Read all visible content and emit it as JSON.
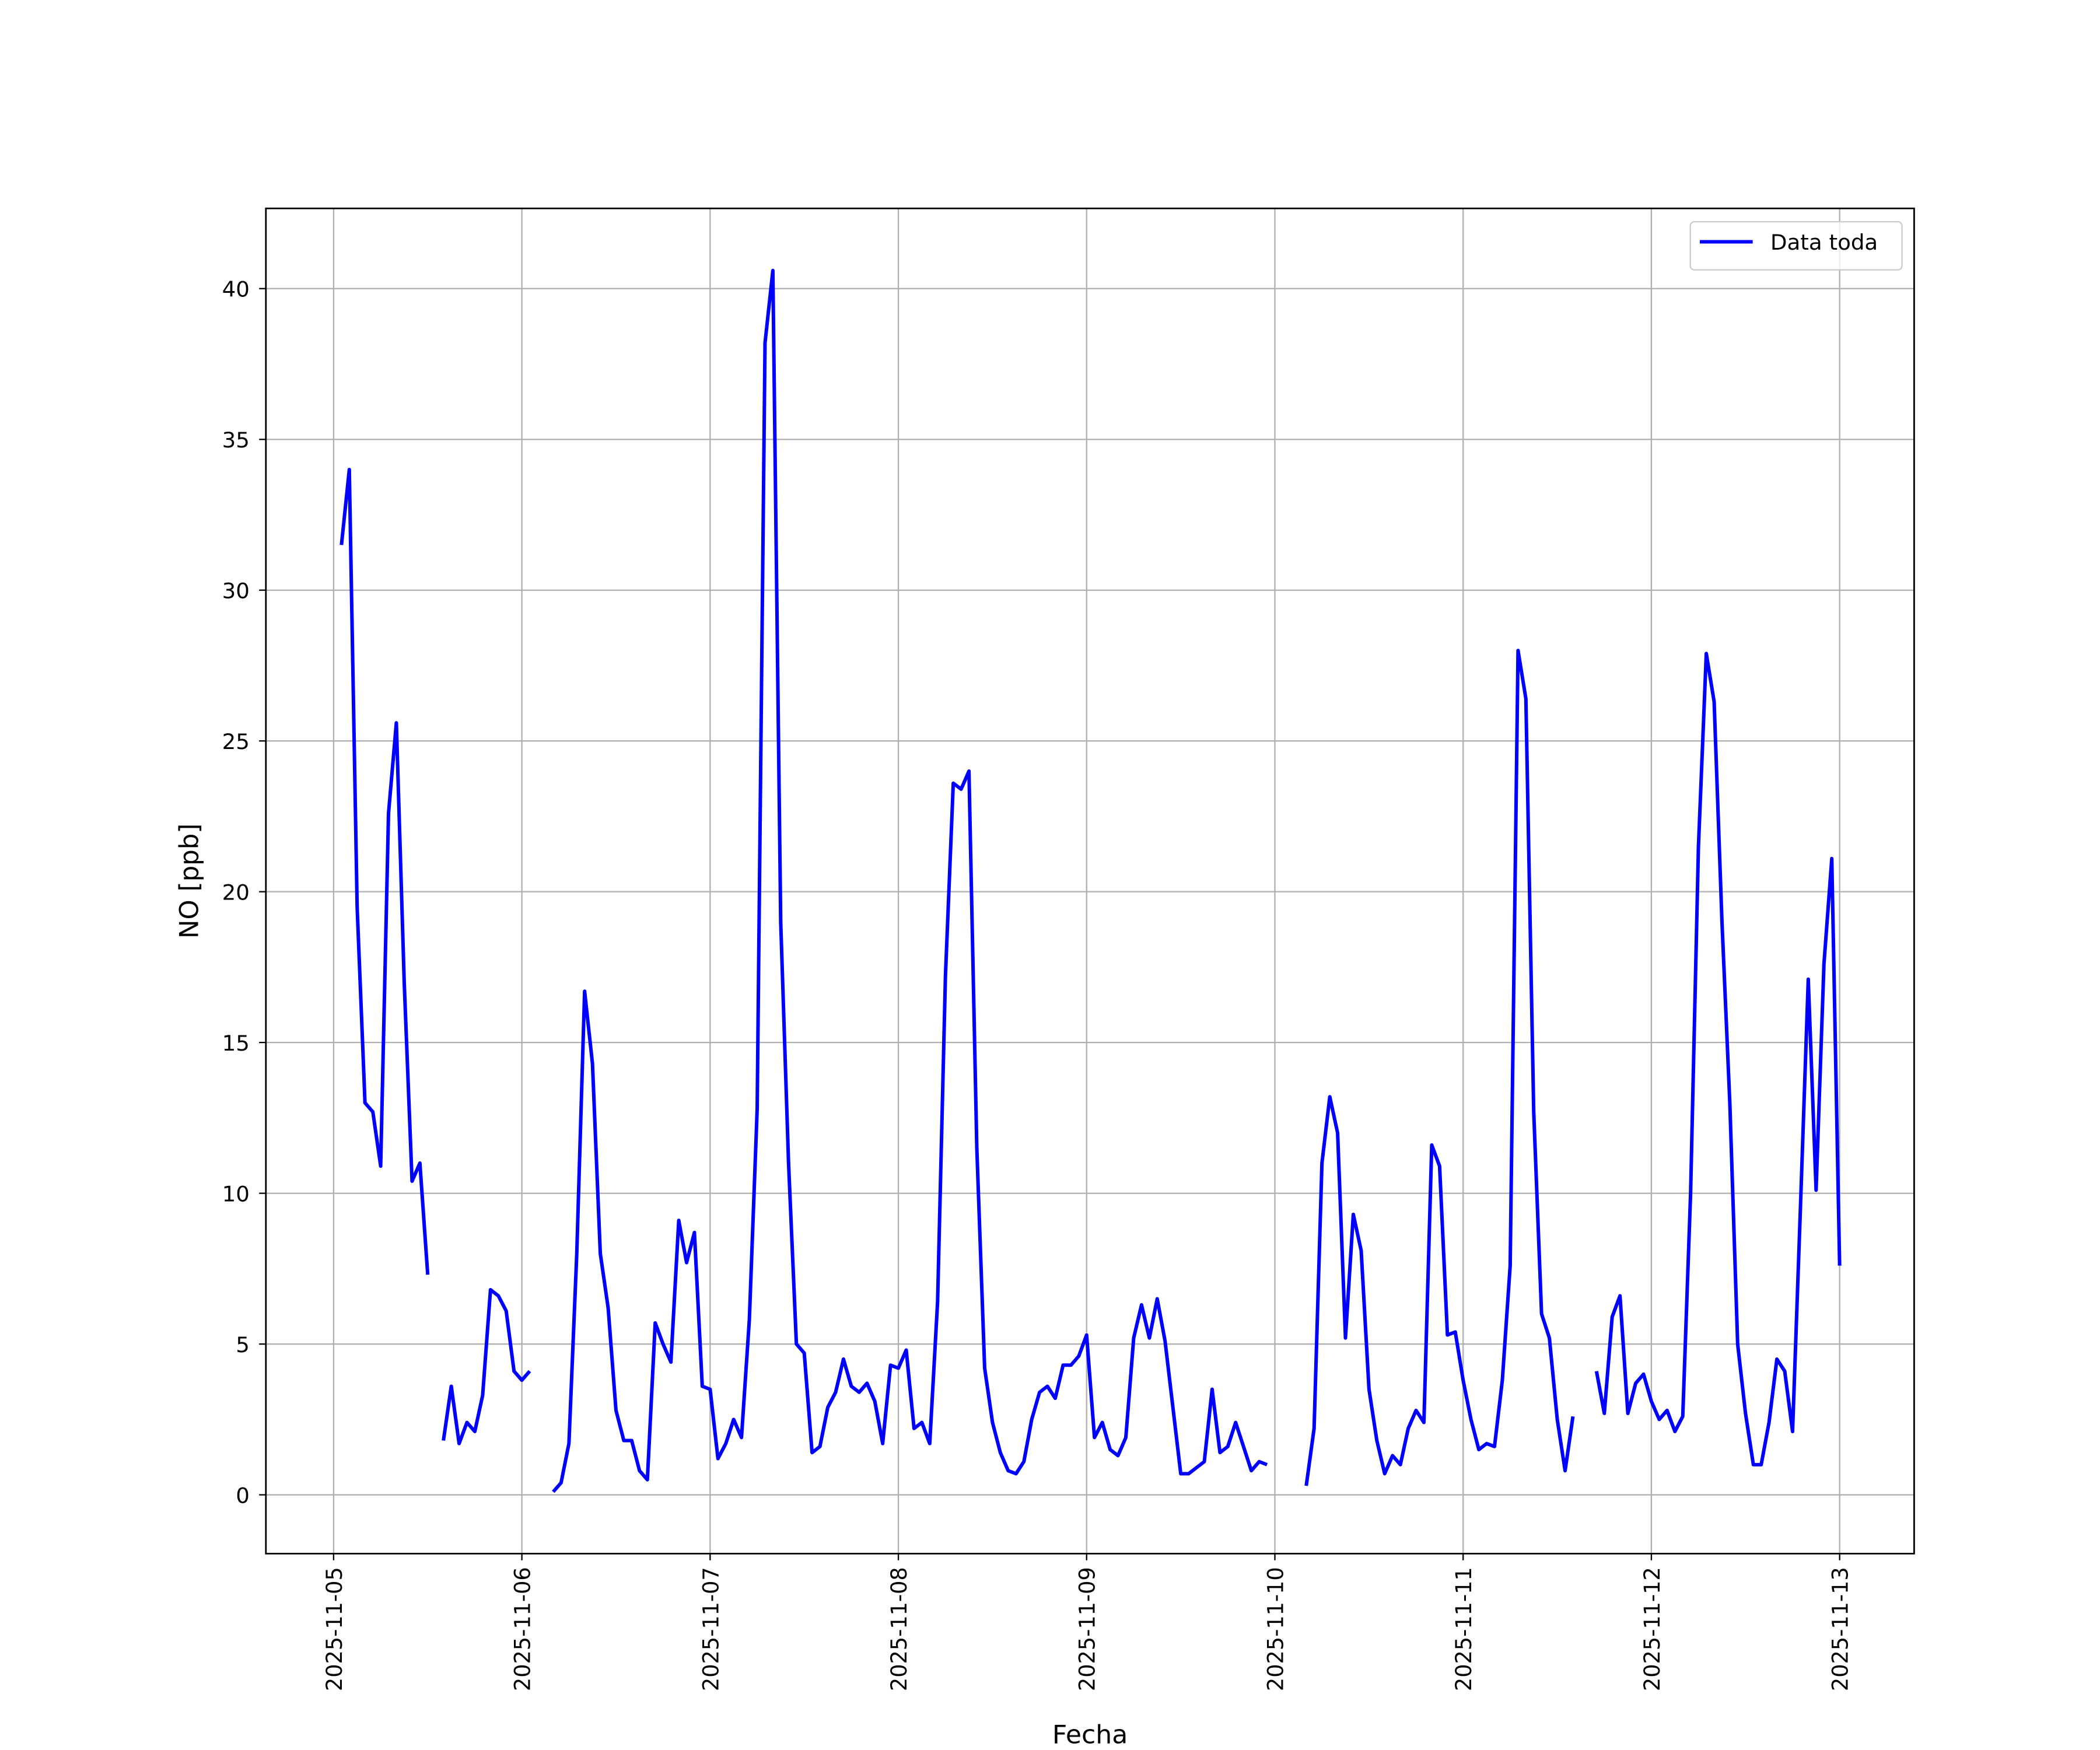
{
  "chart_data": {
    "type": "line",
    "xlabel": "Fecha",
    "ylabel": "NO [ppb]",
    "legend": "upper right",
    "grid": true,
    "xlim": [
      "2025-11-04 15:22",
      "2025-11-13 09:30"
    ],
    "xticks": [
      "2025-11-05",
      "2025-11-06",
      "2025-11-07",
      "2025-11-08",
      "2025-11-09",
      "2025-11-10",
      "2025-11-11",
      "2025-11-12",
      "2025-11-13"
    ],
    "ylim": [
      -1.95,
      42.66
    ],
    "yticks": [
      0,
      5,
      10,
      15,
      20,
      25,
      30,
      35,
      40
    ],
    "x": [
      "2025-11-05 01:00",
      "2025-11-05 02:00",
      "2025-11-05 03:00",
      "2025-11-05 04:00",
      "2025-11-05 05:00",
      "2025-11-05 06:00",
      "2025-11-05 07:00",
      "2025-11-05 08:00",
      "2025-11-05 09:00",
      "2025-11-05 10:00",
      "2025-11-05 11:00",
      "2025-11-05 12:00",
      "2025-11-05 13:00",
      "2025-11-05 14:00",
      "2025-11-05 15:00",
      "2025-11-05 16:00",
      "2025-11-05 17:00",
      "2025-11-05 18:00",
      "2025-11-05 19:00",
      "2025-11-05 20:00",
      "2025-11-05 21:00",
      "2025-11-05 22:00",
      "2025-11-05 23:00",
      "2025-11-06 00:00",
      "2025-11-06 01:00",
      "2025-11-06 02:00",
      "2025-11-06 03:00",
      "2025-11-06 04:00",
      "2025-11-06 05:00",
      "2025-11-06 06:00",
      "2025-11-06 07:00",
      "2025-11-06 08:00",
      "2025-11-06 09:00",
      "2025-11-06 10:00",
      "2025-11-06 11:00",
      "2025-11-06 12:00",
      "2025-11-06 13:00",
      "2025-11-06 14:00",
      "2025-11-06 15:00",
      "2025-11-06 16:00",
      "2025-11-06 17:00",
      "2025-11-06 18:00",
      "2025-11-06 19:00",
      "2025-11-06 20:00",
      "2025-11-06 21:00",
      "2025-11-06 22:00",
      "2025-11-06 23:00",
      "2025-11-07 00:00",
      "2025-11-07 01:00",
      "2025-11-07 02:00",
      "2025-11-07 03:00",
      "2025-11-07 04:00",
      "2025-11-07 05:00",
      "2025-11-07 06:00",
      "2025-11-07 07:00",
      "2025-11-07 08:00",
      "2025-11-07 09:00",
      "2025-11-07 10:00",
      "2025-11-07 11:00",
      "2025-11-07 12:00",
      "2025-11-07 13:00",
      "2025-11-07 14:00",
      "2025-11-07 15:00",
      "2025-11-07 16:00",
      "2025-11-07 17:00",
      "2025-11-07 18:00",
      "2025-11-07 19:00",
      "2025-11-07 20:00",
      "2025-11-07 21:00",
      "2025-11-07 22:00",
      "2025-11-07 23:00",
      "2025-11-08 00:00",
      "2025-11-08 01:00",
      "2025-11-08 02:00",
      "2025-11-08 03:00",
      "2025-11-08 04:00",
      "2025-11-08 05:00",
      "2025-11-08 06:00",
      "2025-11-08 07:00",
      "2025-11-08 08:00",
      "2025-11-08 09:00",
      "2025-11-08 10:00",
      "2025-11-08 11:00",
      "2025-11-08 12:00",
      "2025-11-08 13:00",
      "2025-11-08 14:00",
      "2025-11-08 15:00",
      "2025-11-08 16:00",
      "2025-11-08 17:00",
      "2025-11-08 18:00",
      "2025-11-08 19:00",
      "2025-11-08 20:00",
      "2025-11-08 21:00",
      "2025-11-08 22:00",
      "2025-11-08 23:00",
      "2025-11-09 00:00",
      "2025-11-09 01:00",
      "2025-11-09 02:00",
      "2025-11-09 03:00",
      "2025-11-09 04:00",
      "2025-11-09 05:00",
      "2025-11-09 06:00",
      "2025-11-09 07:00",
      "2025-11-09 08:00",
      "2025-11-09 09:00",
      "2025-11-09 10:00",
      "2025-11-09 11:00",
      "2025-11-09 12:00",
      "2025-11-09 13:00",
      "2025-11-09 14:00",
      "2025-11-09 15:00",
      "2025-11-09 16:00",
      "2025-11-09 17:00",
      "2025-11-09 18:00",
      "2025-11-09 19:00",
      "2025-11-09 20:00",
      "2025-11-09 21:00",
      "2025-11-09 22:00",
      "2025-11-09 23:00",
      "2025-11-10 00:00",
      "2025-11-10 01:00",
      "2025-11-10 02:00",
      "2025-11-10 03:00",
      "2025-11-10 04:00",
      "2025-11-10 05:00",
      "2025-11-10 06:00",
      "2025-11-10 07:00",
      "2025-11-10 08:00",
      "2025-11-10 09:00",
      "2025-11-10 10:00",
      "2025-11-10 11:00",
      "2025-11-10 12:00",
      "2025-11-10 13:00",
      "2025-11-10 14:00",
      "2025-11-10 15:00",
      "2025-11-10 16:00",
      "2025-11-10 17:00",
      "2025-11-10 18:00",
      "2025-11-10 19:00",
      "2025-11-10 20:00",
      "2025-11-10 21:00",
      "2025-11-10 22:00",
      "2025-11-10 23:00",
      "2025-11-11 00:00",
      "2025-11-11 01:00",
      "2025-11-11 02:00",
      "2025-11-11 03:00",
      "2025-11-11 04:00",
      "2025-11-11 05:00",
      "2025-11-11 06:00",
      "2025-11-11 07:00",
      "2025-11-11 08:00",
      "2025-11-11 09:00",
      "2025-11-11 10:00",
      "2025-11-11 11:00",
      "2025-11-11 12:00",
      "2025-11-11 13:00",
      "2025-11-11 14:00",
      "2025-11-11 15:00",
      "2025-11-11 16:00",
      "2025-11-11 17:00",
      "2025-11-11 18:00",
      "2025-11-11 19:00",
      "2025-11-11 20:00",
      "2025-11-11 21:00",
      "2025-11-11 22:00",
      "2025-11-11 23:00",
      "2025-11-12 00:00",
      "2025-11-12 01:00",
      "2025-11-12 02:00",
      "2025-11-12 03:00",
      "2025-11-12 04:00",
      "2025-11-12 05:00",
      "2025-11-12 06:00",
      "2025-11-12 07:00",
      "2025-11-12 08:00",
      "2025-11-12 09:00",
      "2025-11-12 10:00",
      "2025-11-12 11:00",
      "2025-11-12 12:00",
      "2025-11-12 13:00",
      "2025-11-12 14:00",
      "2025-11-12 15:00",
      "2025-11-12 16:00",
      "2025-11-12 17:00",
      "2025-11-12 18:00",
      "2025-11-12 19:00",
      "2025-11-12 20:00",
      "2025-11-12 21:00",
      "2025-11-12 22:00",
      "2025-11-12 23:00",
      "2025-11-13 00:00"
    ],
    "series": [
      {
        "name": "Data toda",
        "color": "#0000ff",
        "values": [
          31.5,
          34,
          19.5,
          13,
          12.7,
          10.9,
          22.6,
          25.6,
          17,
          10.4,
          11,
          7.3,
          null,
          1.8,
          3.6,
          1.7,
          2.4,
          2.1,
          3.3,
          6.8,
          6.6,
          6.1,
          4.1,
          3.8,
          4.1,
          null,
          null,
          0.1,
          0.4,
          1.7,
          8.0,
          16.7,
          14.3,
          8.0,
          6.2,
          2.8,
          1.8,
          1.8,
          0.8,
          0.5,
          5.7,
          5.0,
          4.4,
          9.1,
          7.7,
          8.7,
          3.6,
          3.5,
          1.2,
          1.7,
          2.5,
          1.9,
          5.8,
          12.8,
          38.2,
          40.6,
          19.0,
          11.0,
          5.0,
          4.7,
          1.4,
          1.6,
          2.9,
          3.4,
          4.5,
          3.6,
          3.4,
          3.7,
          3.1,
          1.7,
          4.3,
          4.2,
          4.8,
          2.2,
          2.4,
          1.7,
          6.4,
          17.2,
          23.6,
          23.4,
          24.0,
          11.5,
          4.2,
          2.4,
          1.4,
          0.8,
          0.7,
          1.1,
          2.5,
          3.4,
          3.6,
          3.2,
          4.3,
          4.3,
          4.6,
          5.3,
          1.9,
          2.4,
          1.5,
          1.3,
          1.9,
          5.2,
          6.3,
          5.2,
          6.5,
          5.1,
          2.9,
          0.7,
          0.7,
          0.9,
          1.1,
          3.5,
          1.4,
          1.6,
          2.4,
          1.6,
          0.8,
          1.1,
          1.0,
          null,
          null,
          null,
          null,
          0.3,
          2.2,
          11.0,
          13.2,
          12.0,
          5.2,
          9.3,
          8.1,
          3.5,
          1.8,
          0.7,
          1.3,
          1.0,
          2.2,
          2.8,
          2.4,
          11.6,
          10.9,
          5.3,
          5.4,
          3.8,
          2.5,
          1.5,
          1.7,
          1.6,
          3.8,
          7.6,
          28.0,
          26.4,
          12.7,
          6.0,
          5.2,
          2.5,
          0.8,
          2.6,
          null,
          null,
          4.1,
          2.7,
          5.9,
          6.6,
          2.7,
          3.7,
          4.0,
          3.1,
          2.5,
          2.8,
          2.1,
          2.6,
          10.0,
          21.5,
          27.9,
          26.3,
          19.0,
          13.0,
          5.0,
          2.7,
          1.0,
          1.0,
          2.4,
          4.5,
          4.1,
          2.1,
          9.5,
          17.1,
          10.1,
          17.6,
          21.1,
          7.6
        ]
      }
    ]
  }
}
